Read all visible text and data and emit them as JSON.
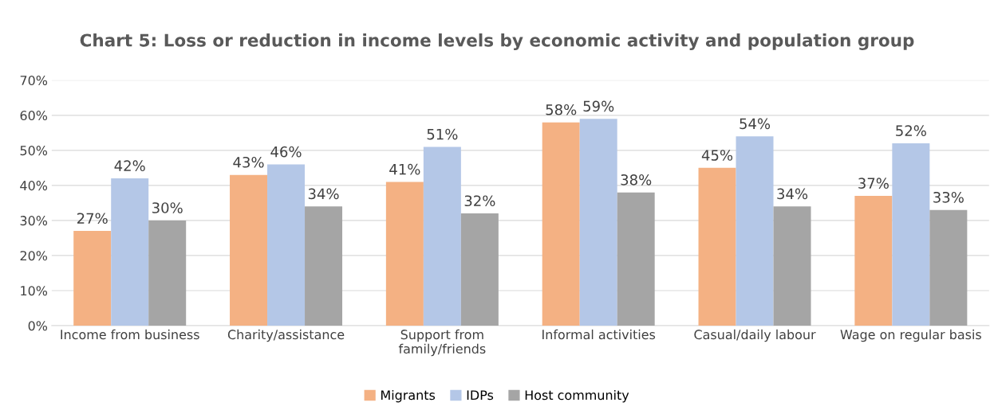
{
  "chart_data": {
    "type": "bar",
    "title": "Chart 5: Loss or reduction in income levels by economic activity and population group",
    "categories": [
      "Income from business",
      "Charity/assistance",
      "Support from\nfamily/friends",
      "Informal activities",
      "Casual/daily labour",
      "Wage on regular basis"
    ],
    "series": [
      {
        "name": "Migrants",
        "color": "#f4b183",
        "values": [
          27,
          43,
          41,
          58,
          45,
          37
        ],
        "value_labels": [
          "27%",
          "43%",
          "41%",
          "58%",
          "45%",
          "37%"
        ]
      },
      {
        "name": "IDPs",
        "color": "#b4c7e7",
        "values": [
          42,
          46,
          51,
          59,
          54,
          52
        ],
        "value_labels": [
          "42%",
          "46%",
          "51%",
          "59%",
          "54%",
          "52%"
        ]
      },
      {
        "name": "Host community",
        "color": "#a5a5a5",
        "values": [
          30,
          34,
          32,
          38,
          34,
          33
        ],
        "value_labels": [
          "30%",
          "34%",
          "32%",
          "38%",
          "34%",
          "33%"
        ]
      }
    ],
    "ylim": [
      0,
      70
    ],
    "yticks": [
      {
        "value": 0,
        "label": "0%"
      },
      {
        "value": 10,
        "label": "10%"
      },
      {
        "value": 20,
        "label": "20%"
      },
      {
        "value": 30,
        "label": "30%"
      },
      {
        "value": 40,
        "label": "40%"
      },
      {
        "value": 50,
        "label": "50%"
      },
      {
        "value": 60,
        "label": "60%"
      },
      {
        "value": 70,
        "label": "70%"
      }
    ],
    "grid": "y",
    "legend": "bottom"
  }
}
